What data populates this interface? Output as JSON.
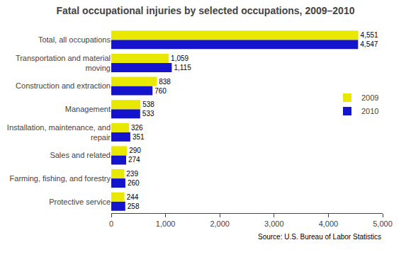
{
  "chart_data": {
    "type": "bar",
    "orientation": "horizontal",
    "title": "Fatal occupational injuries by selected occupations, 2009–2010",
    "categories": [
      "Protective service",
      "Farming, fishing, and forestry",
      "Sales and related",
      "Installation, maintenance, and\nrepair",
      "Management",
      "Construction and extraction",
      "Transportation and material\nmoving",
      "Total, all occupations"
    ],
    "series": [
      {
        "name": "2009",
        "color": "#e8e800",
        "values": [
          244,
          239,
          290,
          326,
          538,
          838,
          1059,
          4551
        ],
        "value_labels": [
          "244",
          "239",
          "290",
          "326",
          "538",
          "838",
          "1,059",
          "4,551"
        ]
      },
      {
        "name": "2010",
        "color": "#1414cc",
        "values": [
          258,
          260,
          274,
          351,
          533,
          760,
          1115,
          4547
        ],
        "value_labels": [
          "258",
          "260",
          "274",
          "351",
          "533",
          "760",
          "1,115",
          "4,547"
        ]
      }
    ],
    "xlim": [
      0,
      5000
    ],
    "xticks": [
      0,
      {
        "value": 1000,
        "label": "1,000"
      },
      {
        "value": 2000,
        "label": "2,000"
      },
      {
        "value": 3000,
        "label": "3,000"
      },
      {
        "value": 4000,
        "label": "4,000"
      },
      {
        "value": 5000,
        "label": "5,000"
      }
    ],
    "data_labels": true,
    "legend": "right",
    "grid": false,
    "annotations": [
      "Source: U.S. Bureau of Labor Statistics"
    ]
  }
}
